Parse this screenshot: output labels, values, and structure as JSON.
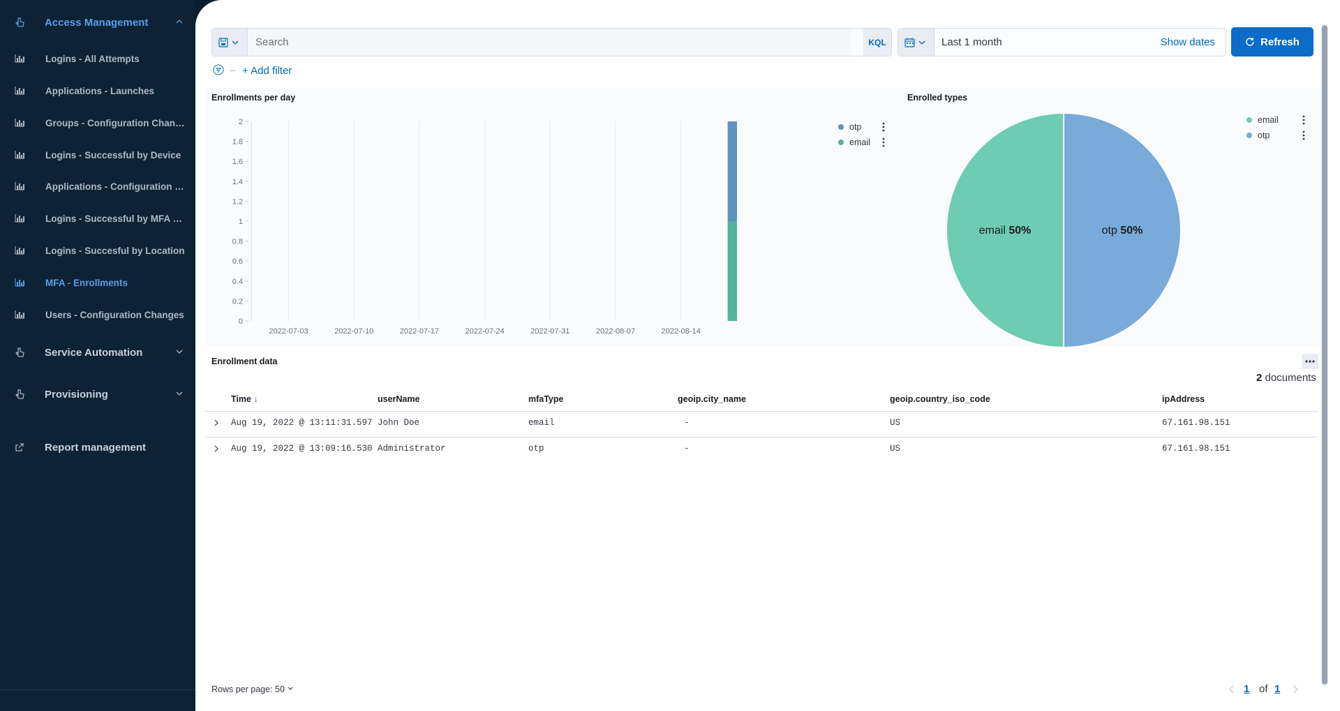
{
  "sidebar": {
    "sections": [
      {
        "label": "Access Management",
        "expanded": true
      },
      {
        "label": "Service Automation",
        "expanded": false
      },
      {
        "label": "Provisioning",
        "expanded": false
      },
      {
        "label": "Report management"
      }
    ],
    "items": [
      {
        "label": "Logins - All Attempts"
      },
      {
        "label": "Applications - Launches"
      },
      {
        "label": "Groups - Configuration Changes"
      },
      {
        "label": "Logins - Successful by Device"
      },
      {
        "label": "Applications - Configuration Changes"
      },
      {
        "label": "Logins - Successful by MFA method"
      },
      {
        "label": "Logins - Succesful by Location"
      },
      {
        "label": "MFA - Enrollments",
        "active": true
      },
      {
        "label": "Users - Configuration Changes"
      }
    ],
    "accent_color": "#5a9ee8"
  },
  "query": {
    "placeholder": "Search",
    "language": "KQL"
  },
  "date": {
    "range": "Last 1 month",
    "show_dates": "Show dates"
  },
  "refresh_label": "Refresh",
  "add_filter_label": "+ Add filter",
  "panels": {
    "enrollments_title": "Enrollments per day",
    "types_title": "Enrolled types",
    "table_title": "Enrollment data"
  },
  "chart_data": [
    {
      "type": "bar",
      "title": "Enrollments per day",
      "stacked": true,
      "x": [
        "2022-07-03",
        "2022-07-10",
        "2022-07-17",
        "2022-07-24",
        "2022-07-31",
        "2022-08-07",
        "2022-08-14"
      ],
      "y_ticks": [
        "2",
        "1.8",
        "1.6",
        "1.4",
        "1.2",
        "1",
        "0.8",
        "0.6",
        "0.4",
        "0.2",
        "0"
      ],
      "ylim": [
        0,
        2
      ],
      "series": [
        {
          "name": "otp",
          "color": "#6092c0",
          "points": [
            {
              "x": "2022-08-19",
              "y": 1
            }
          ]
        },
        {
          "name": "email",
          "color": "#54b399",
          "points": [
            {
              "x": "2022-08-19",
              "y": 1
            }
          ]
        }
      ],
      "legend": "top-right",
      "grid": true
    },
    {
      "type": "pie",
      "title": "Enrolled types",
      "slices": [
        {
          "label": "email",
          "value": 50,
          "display": "50%",
          "color": "#6dccb1"
        },
        {
          "label": "otp",
          "value": 50,
          "display": "50%",
          "color": "#79aad9"
        }
      ],
      "legend": [
        {
          "name": "email",
          "color": "#6dccb1"
        },
        {
          "name": "otp",
          "color": "#79aad9"
        }
      ],
      "legend_position": "top-right"
    }
  ],
  "table": {
    "count": "2",
    "count_label": "documents",
    "columns": [
      "Time",
      "userName",
      "mfaType",
      "geoip.city_name",
      "geoip.country_iso_code",
      "ipAddress"
    ],
    "rows": [
      [
        "Aug 19, 2022 @ 13:11:31.597",
        "John Doe",
        "email",
        "-",
        "US",
        "67.161.98.151"
      ],
      [
        "Aug 19, 2022 @ 13:09:16.530",
        "Administrator",
        "otp",
        "-",
        "US",
        "67.161.98.151"
      ]
    ],
    "rows_per_page": "Rows per page: 50",
    "page_current": "1",
    "page_of": "of",
    "page_total": "1"
  }
}
